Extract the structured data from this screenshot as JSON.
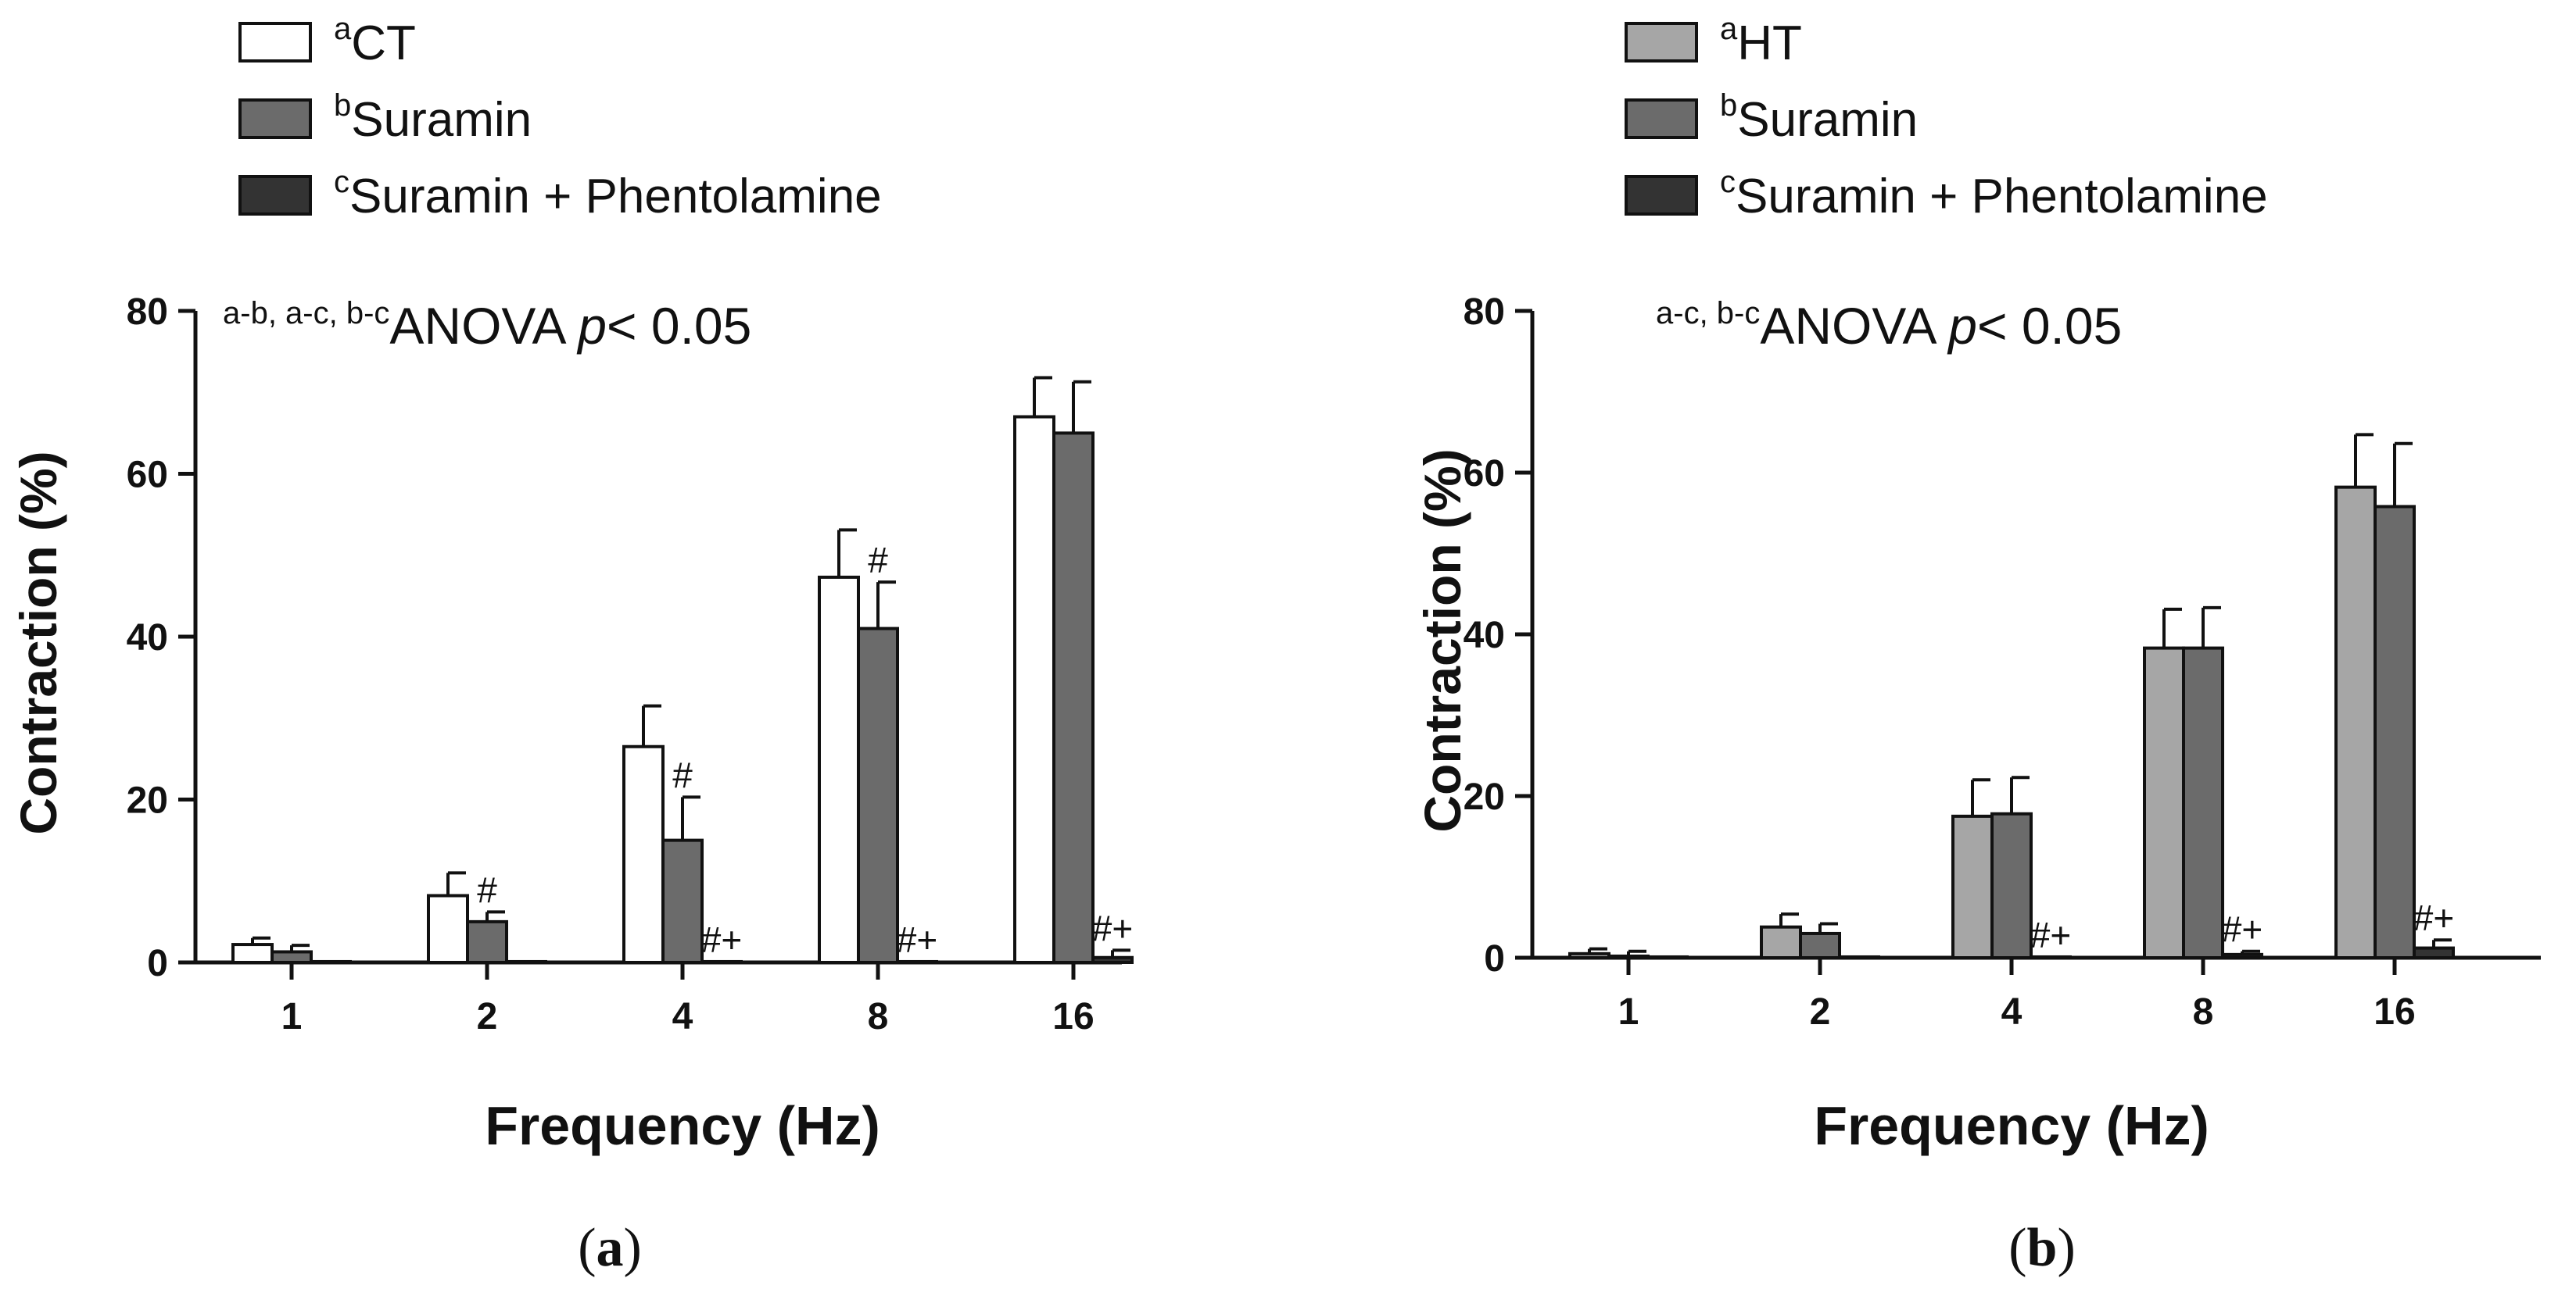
{
  "chart_data": [
    {
      "type": "bar",
      "panel_label": "a",
      "xlabel": "Frequency (Hz)",
      "ylabel": "Contraction (%)",
      "ylim": [
        0,
        80
      ],
      "yticks": [
        0,
        20,
        40,
        60,
        80
      ],
      "categories": [
        "1",
        "2",
        "4",
        "8",
        "16"
      ],
      "annotation": {
        "prefix": "a-b, a-c, b-c",
        "text": "ANOVA ",
        "italic": "p",
        "suffix": "< 0.05"
      },
      "series": [
        {
          "name": "CT",
          "superscript": "a",
          "color": "#ffffff",
          "values": [
            2.2,
            8.2,
            26.5,
            47.3,
            67.0
          ],
          "errors": [
            0.8,
            2.8,
            5.0,
            5.8,
            4.8
          ],
          "marks": [
            "",
            "",
            "",
            "",
            ""
          ]
        },
        {
          "name": "Suramin",
          "superscript": "b",
          "color": "#6b6b6b",
          "values": [
            1.3,
            5.0,
            15.0,
            41.0,
            65.0
          ],
          "errors": [
            0.8,
            1.2,
            5.3,
            5.7,
            6.3
          ],
          "marks": [
            "",
            "#",
            "#",
            "#",
            ""
          ]
        },
        {
          "name": "Suramin + Phentolamine",
          "superscript": "c",
          "color": "#333333",
          "values": [
            0.1,
            0.1,
            0.1,
            0.1,
            0.6
          ],
          "errors": [
            0,
            0,
            0,
            0,
            0.9
          ],
          "marks": [
            "",
            "",
            "#+",
            "#+",
            "#+"
          ]
        }
      ]
    },
    {
      "type": "bar",
      "panel_label": "b",
      "xlabel": "Frequency (Hz)",
      "ylabel": "Contraction (%)",
      "ylim": [
        0,
        80
      ],
      "yticks": [
        0,
        20,
        40,
        60,
        80
      ],
      "categories": [
        "1",
        "2",
        "4",
        "8",
        "16"
      ],
      "annotation": {
        "prefix": "a-c, b-c",
        "text": "ANOVA ",
        "italic": "p",
        "suffix": "< 0.05"
      },
      "series": [
        {
          "name": "HT",
          "superscript": "a",
          "color": "#a6a6a6",
          "values": [
            0.5,
            3.8,
            17.5,
            38.3,
            58.2
          ],
          "errors": [
            0.6,
            1.6,
            4.5,
            4.8,
            6.5
          ],
          "marks": [
            "",
            "",
            "",
            "",
            ""
          ]
        },
        {
          "name": "Suramin",
          "superscript": "b",
          "color": "#6b6b6b",
          "values": [
            0.2,
            3.0,
            17.8,
            38.3,
            55.8
          ],
          "errors": [
            0.6,
            1.2,
            4.5,
            5.0,
            7.8
          ],
          "marks": [
            "",
            "",
            "",
            "",
            ""
          ]
        },
        {
          "name": "Suramin + Phentolamine",
          "superscript": "c",
          "color": "#333333",
          "values": [
            0.1,
            0.1,
            0.1,
            0.4,
            1.2
          ],
          "errors": [
            0,
            0,
            0,
            0.4,
            1.0
          ],
          "marks": [
            "",
            "",
            "#+",
            "#+",
            "#+"
          ]
        }
      ]
    }
  ]
}
